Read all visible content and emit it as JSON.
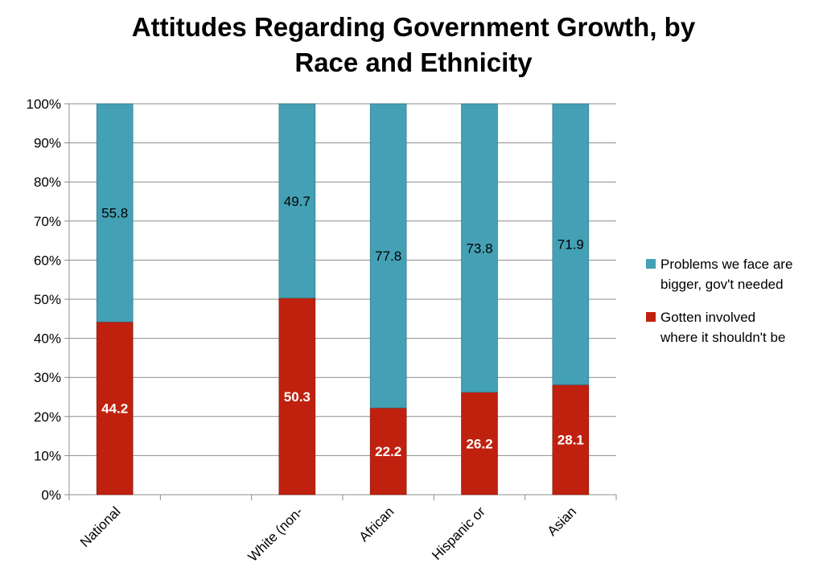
{
  "chart_data": {
    "type": "bar",
    "stacked": true,
    "percent_stacked": true,
    "title": "Attitudes Regarding Government Growth, by Race and Ethnicity",
    "categories": [
      "National",
      "",
      "White (non-",
      "African",
      "Hispanic or",
      "Asian"
    ],
    "series": [
      {
        "name": "Gotten involved where it shouldn't be",
        "color": "#c0210f",
        "label_color": "#ffffff",
        "values": [
          44.2,
          null,
          50.3,
          22.2,
          26.2,
          28.1
        ],
        "labels": [
          "44.2",
          "",
          "50.3",
          "22.2",
          "26.2",
          "28.1"
        ]
      },
      {
        "name": "Problems we face are bigger, gov't needed",
        "color": "#44a0b4",
        "label_color": "#000000",
        "values": [
          55.8,
          null,
          49.7,
          77.8,
          73.8,
          71.9
        ],
        "labels": [
          "55.8",
          "",
          "49.7",
          "77.8",
          "73.8",
          "71.9"
        ]
      }
    ],
    "ylim": [
      0,
      100
    ],
    "yticks": [
      "0%",
      "10%",
      "20%",
      "30%",
      "40%",
      "50%",
      "60%",
      "70%",
      "80%",
      "90%",
      "100%"
    ],
    "grid": true,
    "legend_position": "right",
    "legend": [
      {
        "label_line1": "Problems we face are",
        "label_line2": "bigger, gov't needed",
        "color": "#44a0b4"
      },
      {
        "label_line1": "Gotten involved",
        "label_line2": "where it shouldn't be",
        "color": "#c0210f"
      }
    ]
  }
}
